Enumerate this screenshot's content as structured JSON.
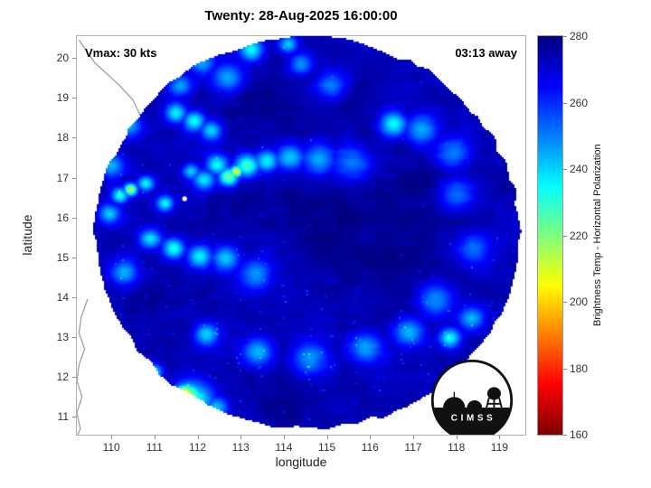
{
  "logo": {
    "text": "C I M S S"
  },
  "chart_data": {
    "type": "heatmap",
    "title": "Twenty: 28-Aug-2025 16:00:00",
    "xlabel": "longitude",
    "ylabel": "latitude",
    "xlim": [
      109.2,
      119.6
    ],
    "ylim": [
      10.55,
      20.55
    ],
    "xticks": [
      110,
      111,
      112,
      113,
      114,
      115,
      116,
      117,
      118,
      119
    ],
    "yticks": [
      11,
      12,
      13,
      14,
      15,
      16,
      17,
      18,
      19,
      20
    ],
    "grid": false,
    "annotations": {
      "vmax": "Vmax: 30 kts",
      "time_to_pass": "03:13 away"
    },
    "colorbar": {
      "label": "Brightness Temp - Horizontal Polarization",
      "min": 160,
      "max": 280,
      "ticks": [
        160,
        180,
        200,
        220,
        240,
        260,
        280
      ],
      "colormap": "jet",
      "position": "right"
    },
    "swath": {
      "center_lon": 114.55,
      "center_lat": 15.6,
      "radius_deg": 4.92,
      "background_temp_k": 273
    },
    "storm_center_marker": {
      "lon": 111.7,
      "lat": 16.47,
      "style": "white-dot"
    },
    "cold_features": [
      [
        112.9,
        17.15,
        202,
        0.1
      ],
      [
        112.72,
        17.02,
        220,
        0.16
      ],
      [
        113.15,
        17.3,
        227,
        0.2
      ],
      [
        112.45,
        17.32,
        233,
        0.18
      ],
      [
        112.15,
        16.95,
        238,
        0.18
      ],
      [
        113.6,
        17.42,
        236,
        0.2
      ],
      [
        114.15,
        17.5,
        240,
        0.24
      ],
      [
        114.8,
        17.45,
        243,
        0.28
      ],
      [
        115.55,
        17.35,
        248,
        0.32
      ],
      [
        111.85,
        17.15,
        240,
        0.14
      ],
      [
        111.5,
        18.62,
        236,
        0.18
      ],
      [
        111.92,
        18.42,
        234,
        0.18
      ],
      [
        112.32,
        18.18,
        238,
        0.18
      ],
      [
        110.4,
        18.3,
        245,
        0.2
      ],
      [
        112.1,
        19.9,
        245,
        0.22
      ],
      [
        113.25,
        20.2,
        234,
        0.2
      ],
      [
        114.1,
        20.35,
        241,
        0.16
      ],
      [
        112.7,
        19.5,
        246,
        0.26
      ],
      [
        111.6,
        19.3,
        247,
        0.2
      ],
      [
        114.4,
        19.85,
        246,
        0.2
      ],
      [
        115.1,
        19.3,
        248,
        0.25
      ],
      [
        116.55,
        18.35,
        233,
        0.22
      ],
      [
        117.2,
        18.2,
        244,
        0.28
      ],
      [
        117.9,
        17.6,
        248,
        0.3
      ],
      [
        110.45,
        16.7,
        212,
        0.11
      ],
      [
        110.2,
        16.55,
        232,
        0.14
      ],
      [
        110.8,
        16.85,
        236,
        0.14
      ],
      [
        111.25,
        16.35,
        235,
        0.14
      ],
      [
        109.95,
        16.1,
        241,
        0.18
      ],
      [
        110.0,
        17.3,
        244,
        0.2
      ],
      [
        110.9,
        15.45,
        238,
        0.18
      ],
      [
        111.45,
        15.2,
        232,
        0.18
      ],
      [
        112.05,
        15.0,
        236,
        0.2
      ],
      [
        112.65,
        14.95,
        241,
        0.22
      ],
      [
        113.35,
        14.55,
        246,
        0.28
      ],
      [
        110.3,
        14.6,
        243,
        0.22
      ],
      [
        112.2,
        13.05,
        239,
        0.2
      ],
      [
        113.4,
        12.6,
        243,
        0.25
      ],
      [
        114.6,
        12.45,
        246,
        0.3
      ],
      [
        115.9,
        12.7,
        245,
        0.28
      ],
      [
        116.9,
        13.1,
        242,
        0.25
      ],
      [
        117.85,
        12.95,
        234,
        0.18
      ],
      [
        118.35,
        13.45,
        243,
        0.22
      ],
      [
        117.5,
        13.9,
        247,
        0.3
      ],
      [
        111.65,
        11.55,
        165,
        0.08
      ],
      [
        111.7,
        11.55,
        190,
        0.15
      ],
      [
        111.78,
        11.48,
        212,
        0.24
      ],
      [
        111.9,
        11.4,
        230,
        0.32
      ],
      [
        111.0,
        12.1,
        236,
        0.13
      ],
      [
        112.45,
        11.2,
        242,
        0.2
      ],
      [
        110.85,
        11.85,
        244,
        0.18
      ],
      [
        118.4,
        15.2,
        250,
        0.3
      ],
      [
        118.0,
        16.6,
        249,
        0.3
      ]
    ],
    "warm_patches": [
      [
        114.9,
        16.1,
        5,
        1.0
      ],
      [
        116.6,
        14.9,
        4,
        1.2
      ],
      [
        113.4,
        18.9,
        4,
        0.7
      ],
      [
        117.5,
        16.9,
        4,
        0.8
      ],
      [
        111.2,
        13.7,
        3,
        0.7
      ],
      [
        114.2,
        11.5,
        4,
        0.8
      ],
      [
        115.6,
        19.0,
        3,
        0.6
      ],
      [
        112.8,
        16.2,
        3,
        0.5
      ]
    ],
    "coastlines": [
      [
        [
          109.25,
          20.45
        ],
        [
          109.6,
          19.9
        ],
        [
          109.95,
          19.55
        ],
        [
          110.2,
          19.3
        ],
        [
          110.5,
          18.95
        ],
        [
          110.7,
          18.5
        ],
        [
          110.95,
          18.2
        ],
        [
          111.1,
          18.05
        ]
      ],
      [
        [
          109.45,
          13.95
        ],
        [
          109.3,
          13.5
        ],
        [
          109.25,
          13.1
        ],
        [
          109.38,
          12.7
        ],
        [
          109.25,
          12.3
        ],
        [
          109.2,
          11.9
        ],
        [
          109.32,
          11.5
        ],
        [
          109.2,
          11.1
        ],
        [
          109.28,
          10.7
        ],
        [
          109.22,
          10.55
        ]
      ]
    ]
  }
}
